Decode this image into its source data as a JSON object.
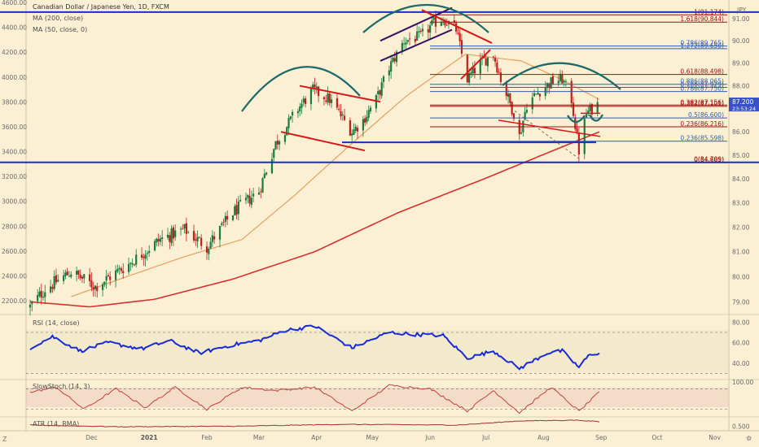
{
  "legend": {
    "title": "Canadian Dollar / Japanese Yen, 1D, FXCM",
    "ma200": "MA (200, close)",
    "ma50": "MA (50, close, 0)"
  },
  "corner": {
    "bottom_left": "Z",
    "bottom_right": "⚙"
  },
  "colors": {
    "background": "#fbf0d4",
    "price_up": "#1b7a3e",
    "price_down": "#c0201d",
    "ma200": "#d83030",
    "ma50": "#e8a060",
    "trend_blue": "#1530d0",
    "pattern_red": "#d81818",
    "pattern_purple": "#3a1060",
    "arc_teal": "#1e6a68",
    "fib_red": "#a01010",
    "rsi": "#1a2bd6",
    "stoch": "#c04040",
    "atr": "#a03030"
  },
  "chart_data": [
    {
      "type": "candlestick",
      "name": "price",
      "y_scale": "log",
      "right_axis": {
        "label": "JPY",
        "ticks": [
          "91.00",
          "90.00",
          "89.00",
          "88.00",
          "87.00",
          "86.00",
          "85.00",
          "84.00",
          "83.00",
          "82.00",
          "81.00",
          "80.00",
          "79.00"
        ],
        "values": [
          91,
          90,
          89,
          88,
          87,
          86,
          85,
          84,
          83,
          82,
          81,
          80,
          79
        ],
        "current_price": "87.200",
        "countdown": "23:53:24"
      },
      "left_axis": {
        "ticks": [
          "4600.00",
          "4400.00",
          "4200.00",
          "4000.00",
          "3800.00",
          "3600.00",
          "3400.00",
          "3200.00",
          "3000.00",
          "2800.00",
          "2600.00",
          "2400.00",
          "2200.00"
        ],
        "values": [
          4600,
          4400,
          4200,
          4000,
          3800,
          3600,
          3400,
          3200,
          3000,
          2800,
          2600,
          2400,
          2200
        ]
      },
      "x_axis": {
        "ticks": [
          "Dec",
          "2021",
          "Feb",
          "Mar",
          "Apr",
          "May",
          "Jun",
          "Jul",
          "Aug",
          "Sep",
          "Oct",
          "Nov"
        ]
      },
      "anchors": [
        {
          "date": "2020-10-29",
          "value": 78.8
        },
        {
          "date": "2020-11-06",
          "value": 79.5
        },
        {
          "date": "2020-11-20",
          "value": 80.2
        },
        {
          "date": "2020-12-03",
          "value": 79.6
        },
        {
          "date": "2020-12-21",
          "value": 80.5
        },
        {
          "date": "2021-01-07",
          "value": 81.5
        },
        {
          "date": "2021-01-20",
          "value": 81.9
        },
        {
          "date": "2021-02-01",
          "value": 81.2
        },
        {
          "date": "2021-02-15",
          "value": 82.6
        },
        {
          "date": "2021-03-01",
          "value": 83.5
        },
        {
          "date": "2021-03-10",
          "value": 85.5
        },
        {
          "date": "2021-03-22",
          "value": 87.0
        },
        {
          "date": "2021-03-30",
          "value": 87.8
        },
        {
          "date": "2021-04-08",
          "value": 87.4
        },
        {
          "date": "2021-04-20",
          "value": 86.0
        },
        {
          "date": "2021-04-26",
          "value": 86.5
        },
        {
          "date": "2021-05-03",
          "value": 87.4
        },
        {
          "date": "2021-05-10",
          "value": 88.8
        },
        {
          "date": "2021-05-18",
          "value": 90.0
        },
        {
          "date": "2021-05-27",
          "value": 90.2
        },
        {
          "date": "2021-06-03",
          "value": 90.8
        },
        {
          "date": "2021-06-08",
          "value": 91.0
        },
        {
          "date": "2021-06-15",
          "value": 90.5
        },
        {
          "date": "2021-06-21",
          "value": 88.3
        },
        {
          "date": "2021-06-28",
          "value": 89.0
        },
        {
          "date": "2021-07-05",
          "value": 89.4
        },
        {
          "date": "2021-07-09",
          "value": 88.3
        },
        {
          "date": "2021-07-16",
          "value": 86.8
        },
        {
          "date": "2021-07-19",
          "value": 85.8
        },
        {
          "date": "2021-07-23",
          "value": 87.2
        },
        {
          "date": "2021-07-30",
          "value": 87.8
        },
        {
          "date": "2021-08-06",
          "value": 88.2
        },
        {
          "date": "2021-08-11",
          "value": 88.3
        },
        {
          "date": "2021-08-16",
          "value": 87.4
        },
        {
          "date": "2021-08-20",
          "value": 85.2
        },
        {
          "date": "2021-08-24",
          "value": 86.8
        },
        {
          "date": "2021-08-30",
          "value": 87.2
        }
      ],
      "ma200_anchors": [
        {
          "date": "2020-10-29",
          "value": 79.0
        },
        {
          "date": "2020-11-30",
          "value": 78.8
        },
        {
          "date": "2021-01-04",
          "value": 79.1
        },
        {
          "date": "2021-02-15",
          "value": 79.9
        },
        {
          "date": "2021-03-31",
          "value": 81.0
        },
        {
          "date": "2021-05-15",
          "value": 82.6
        },
        {
          "date": "2021-06-30",
          "value": 84.0
        },
        {
          "date": "2021-07-31",
          "value": 85.0
        },
        {
          "date": "2021-08-31",
          "value": 86.0
        }
      ],
      "ma50_anchors": [
        {
          "date": "2020-11-20",
          "value": 79.2
        },
        {
          "date": "2020-12-20",
          "value": 80.0
        },
        {
          "date": "2021-01-20",
          "value": 80.8
        },
        {
          "date": "2021-02-20",
          "value": 81.5
        },
        {
          "date": "2021-03-20",
          "value": 83.3
        },
        {
          "date": "2021-04-20",
          "value": 85.5
        },
        {
          "date": "2021-05-20",
          "value": 87.6
        },
        {
          "date": "2021-06-20",
          "value": 89.4
        },
        {
          "date": "2021-07-20",
          "value": 89.1
        },
        {
          "date": "2021-08-10",
          "value": 88.3
        },
        {
          "date": "2021-08-31",
          "value": 87.4
        }
      ],
      "fibonacci": [
        {
          "label": "1(91.174)",
          "value": 91.174,
          "color": "#a01010"
        },
        {
          "label": "1.618(90.844)",
          "value": 90.844,
          "color": "#a01010"
        },
        {
          "label": "0.786(89.765)",
          "value": 89.765,
          "color": "#2f5fb0"
        },
        {
          "label": "1.272(89.650)",
          "value": 89.65,
          "color": "#2f5fb0"
        },
        {
          "label": "0.618(88.498)",
          "value": 88.498,
          "color": "#a01010"
        },
        {
          "label": "0.886(88.065)",
          "value": 88.065,
          "color": "#2f5fb0"
        },
        {
          "label": "0.786(87.929)",
          "value": 87.929,
          "color": "#2f5fb0"
        },
        {
          "label": "0.786(87.750)",
          "value": 87.75,
          "color": "#2f5fb0"
        },
        {
          "label": "0.382(87.156)",
          "value": 87.156,
          "color": "#a01010"
        },
        {
          "label": "0.382(87.101)",
          "value": 87.101,
          "color": "#a01010"
        },
        {
          "label": "0.5(86.600)",
          "value": 86.6,
          "color": "#2f5fb0"
        },
        {
          "label": "0.236(86.216)",
          "value": 86.216,
          "color": "#a01010"
        },
        {
          "label": "0.236(85.598)",
          "value": 85.598,
          "color": "#2f5fb0"
        },
        {
          "label": "0(84.709)",
          "value": 84.709,
          "color": "#a01010"
        },
        {
          "label": "0(84.685)",
          "value": 84.685,
          "color": "#a01010"
        }
      ]
    },
    {
      "type": "line",
      "name": "RSI (14, close)",
      "y_axis": {
        "ticks": [
          "80.00",
          "60.00",
          "40.00"
        ],
        "values": [
          80,
          60,
          40
        ]
      },
      "levels": [
        70,
        30
      ],
      "anchors": [
        {
          "date": "2020-10-29",
          "value": 55
        },
        {
          "date": "2020-11-10",
          "value": 66
        },
        {
          "date": "2020-11-25",
          "value": 52
        },
        {
          "date": "2020-12-10",
          "value": 60
        },
        {
          "date": "2020-12-28",
          "value": 54
        },
        {
          "date": "2021-01-12",
          "value": 62
        },
        {
          "date": "2021-01-28",
          "value": 50
        },
        {
          "date": "2021-02-15",
          "value": 58
        },
        {
          "date": "2021-03-01",
          "value": 62
        },
        {
          "date": "2021-03-15",
          "value": 72
        },
        {
          "date": "2021-03-31",
          "value": 76
        },
        {
          "date": "2021-04-20",
          "value": 55
        },
        {
          "date": "2021-05-10",
          "value": 70
        },
        {
          "date": "2021-05-25",
          "value": 68
        },
        {
          "date": "2021-06-08",
          "value": 67
        },
        {
          "date": "2021-06-21",
          "value": 45
        },
        {
          "date": "2021-07-05",
          "value": 52
        },
        {
          "date": "2021-07-19",
          "value": 35
        },
        {
          "date": "2021-08-03",
          "value": 50
        },
        {
          "date": "2021-08-11",
          "value": 52
        },
        {
          "date": "2021-08-20",
          "value": 36
        },
        {
          "date": "2021-08-26",
          "value": 49
        },
        {
          "date": "2021-08-31",
          "value": 50
        }
      ]
    },
    {
      "type": "line",
      "name": "SlowStoch (14, 3)",
      "y_axis": {
        "ticks": [
          "100.00"
        ],
        "values": [
          100
        ]
      },
      "levels": [
        80,
        20
      ],
      "anchors": [
        {
          "date": "2020-10-29",
          "value": 70
        },
        {
          "date": "2020-11-12",
          "value": 85
        },
        {
          "date": "2020-11-27",
          "value": 20
        },
        {
          "date": "2020-12-14",
          "value": 80
        },
        {
          "date": "2020-12-30",
          "value": 25
        },
        {
          "date": "2021-01-15",
          "value": 85
        },
        {
          "date": "2021-02-01",
          "value": 20
        },
        {
          "date": "2021-02-20",
          "value": 85
        },
        {
          "date": "2021-03-10",
          "value": 75
        },
        {
          "date": "2021-03-31",
          "value": 85
        },
        {
          "date": "2021-04-20",
          "value": 15
        },
        {
          "date": "2021-05-10",
          "value": 90
        },
        {
          "date": "2021-06-01",
          "value": 80
        },
        {
          "date": "2021-06-21",
          "value": 15
        },
        {
          "date": "2021-07-05",
          "value": 75
        },
        {
          "date": "2021-07-19",
          "value": 10
        },
        {
          "date": "2021-08-05",
          "value": 85
        },
        {
          "date": "2021-08-20",
          "value": 15
        },
        {
          "date": "2021-08-31",
          "value": 70
        }
      ]
    },
    {
      "type": "line",
      "name": "ATR (14, RMA)",
      "y_axis": {
        "ticks": [
          "0.500"
        ],
        "values": [
          0.5
        ]
      },
      "anchors": [
        {
          "date": "2020-10-29",
          "value": 0.55
        },
        {
          "date": "2020-12-15",
          "value": 0.48
        },
        {
          "date": "2021-02-15",
          "value": 0.5
        },
        {
          "date": "2021-04-15",
          "value": 0.58
        },
        {
          "date": "2021-06-15",
          "value": 0.55
        },
        {
          "date": "2021-07-20",
          "value": 0.72
        },
        {
          "date": "2021-08-20",
          "value": 0.75
        },
        {
          "date": "2021-08-31",
          "value": 0.68
        }
      ]
    }
  ]
}
